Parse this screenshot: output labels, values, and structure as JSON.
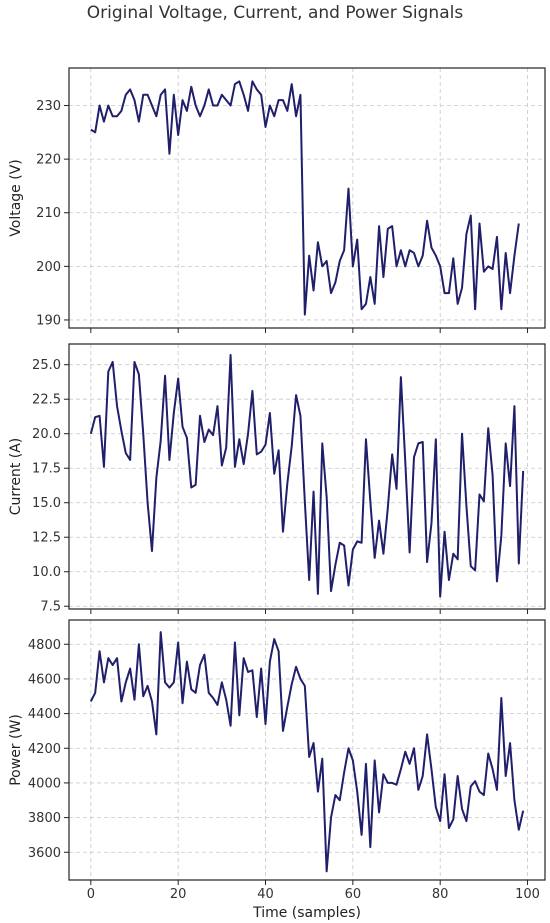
{
  "chart_data": {
    "type": "line",
    "title": "Original Voltage, Current, and Power Signals",
    "xlabel": "Time (samples)",
    "x": [
      0,
      1,
      2,
      3,
      4,
      5,
      6,
      7,
      8,
      9,
      10,
      11,
      12,
      13,
      14,
      15,
      16,
      17,
      18,
      19,
      20,
      21,
      22,
      23,
      24,
      25,
      26,
      27,
      28,
      29,
      30,
      31,
      32,
      33,
      34,
      35,
      36,
      37,
      38,
      39,
      40,
      41,
      42,
      43,
      44,
      45,
      46,
      47,
      48,
      49,
      50,
      51,
      52,
      53,
      54,
      55,
      56,
      57,
      58,
      59,
      60,
      61,
      62,
      63,
      64,
      65,
      66,
      67,
      68,
      69,
      70,
      71,
      72,
      73,
      74,
      75,
      76,
      77,
      78,
      79,
      80,
      81,
      82,
      83,
      84,
      85,
      86,
      87,
      88,
      89,
      90,
      91,
      92,
      93,
      94,
      95,
      96,
      97,
      98,
      99
    ],
    "xlim": [
      -5,
      104
    ],
    "xticks": [
      0,
      20,
      40,
      60,
      80,
      100
    ],
    "xtick_labels": [
      "0",
      "20",
      "40",
      "60",
      "80",
      "100"
    ],
    "grid": true,
    "color": "#1f1f6b",
    "panels": [
      {
        "ylabel": "Voltage (V)",
        "ylim": [
          188.5,
          237
        ],
        "yticks": [
          190,
          200,
          210,
          220,
          230
        ],
        "ytick_labels": [
          "190",
          "200",
          "210",
          "220",
          "230"
        ],
        "values": [
          225.5,
          225,
          230,
          227,
          230,
          228,
          228,
          229,
          232,
          233,
          231,
          227,
          232,
          232,
          230,
          228,
          232,
          233,
          221,
          232,
          224.5,
          231,
          229,
          233.5,
          230,
          228,
          230,
          233,
          230,
          230,
          232,
          231,
          230,
          234,
          234.5,
          232,
          229,
          234.5,
          233,
          232,
          226,
          230,
          228,
          231,
          231,
          229,
          234,
          228,
          232,
          191,
          202,
          195.5,
          204.5,
          200,
          201,
          195,
          197,
          201,
          203,
          214.5,
          200,
          205,
          192,
          193,
          198,
          193,
          207.5,
          198,
          207,
          207.5,
          200,
          203,
          200,
          203,
          202.5,
          200,
          202,
          208.5,
          203.5,
          202,
          200,
          195,
          195,
          201.5,
          193,
          196,
          206,
          209.5,
          192,
          208,
          199,
          200,
          199.5,
          205.5,
          192,
          202.5,
          195,
          202,
          208
        ]
      },
      {
        "ylabel": "Current (A)",
        "ylim": [
          7.3,
          26.5
        ],
        "yticks": [
          7.5,
          10,
          12.5,
          15,
          17.5,
          20,
          22.5,
          25
        ],
        "ytick_labels": [
          "7.5",
          "10.0",
          "12.5",
          "15.0",
          "17.5",
          "20.0",
          "22.5",
          "25.0"
        ],
        "values": [
          20,
          21.2,
          21.3,
          17.6,
          24.5,
          25.2,
          22,
          20.2,
          18.6,
          18.1,
          25.2,
          24.3,
          20,
          15,
          11.5,
          16.8,
          19.5,
          24.2,
          18.1,
          21.5,
          24,
          20.5,
          19.7,
          16.1,
          16.3,
          21.3,
          19.4,
          20.3,
          19.9,
          22,
          17.7,
          19,
          25.7,
          17.6,
          19.6,
          17.8,
          20,
          23.1,
          18.5,
          18.7,
          19.2,
          21.5,
          17.1,
          18.8,
          12.9,
          16.4,
          19.1,
          22.8,
          21.3,
          15.1,
          9.4,
          15.8,
          8.4,
          19.3,
          15.4,
          8.6,
          10.5,
          12.1,
          11.9,
          9,
          11.6,
          12.2,
          12.1,
          19.6,
          15.1,
          11,
          13.7,
          11.3,
          14.6,
          18.5,
          16,
          24.1,
          18,
          11.4,
          18.3,
          19.3,
          19.4,
          10.7,
          13.5,
          19.6,
          8.2,
          12.9,
          9.4,
          11.3,
          10.9,
          20,
          14.8,
          10.4,
          10.1,
          15.6,
          15.1,
          20.4,
          17,
          9.3,
          12.6,
          19.3,
          16.2,
          22,
          10.6,
          17.3
        ]
      },
      {
        "ylabel": "Power (W)",
        "ylim": [
          3440,
          4940
        ],
        "yticks": [
          3600,
          3800,
          4000,
          4200,
          4400,
          4600,
          4800
        ],
        "ytick_labels": [
          "3600",
          "3800",
          "4000",
          "4200",
          "4400",
          "4600",
          "4800"
        ],
        "values": [
          4470,
          4520,
          4760,
          4580,
          4720,
          4680,
          4720,
          4470,
          4580,
          4660,
          4480,
          4800,
          4500,
          4560,
          4470,
          4280,
          4870,
          4580,
          4550,
          4580,
          4810,
          4460,
          4700,
          4540,
          4520,
          4680,
          4740,
          4520,
          4490,
          4450,
          4580,
          4480,
          4330,
          4810,
          4390,
          4720,
          4640,
          4650,
          4380,
          4660,
          4340,
          4700,
          4830,
          4760,
          4300,
          4440,
          4570,
          4670,
          4600,
          4560,
          4150,
          4230,
          3950,
          4140,
          3490,
          3800,
          3930,
          3900,
          4060,
          4200,
          4130,
          3950,
          3700,
          4110,
          3630,
          4130,
          3830,
          4050,
          4000,
          4000,
          3990,
          4080,
          4180,
          4110,
          4200,
          3960,
          4040,
          4280,
          4080,
          3860,
          3780,
          4050,
          3740,
          3790,
          4040,
          3850,
          3780,
          3980,
          4010,
          3950,
          3930,
          4170,
          4080,
          3960,
          4490,
          4040,
          4230,
          3900,
          3730,
          3840
        ]
      }
    ]
  }
}
